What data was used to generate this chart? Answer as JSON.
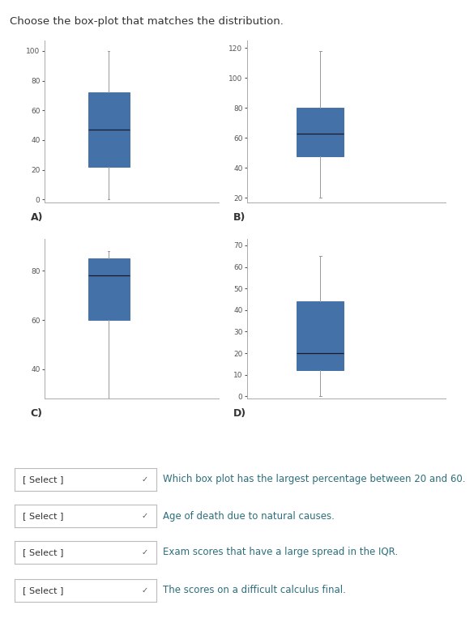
{
  "title": "Choose the box-plot that matches the distribution.",
  "box_color": "#4472a8",
  "box_edge_color": "#4472a8",
  "median_color": "#1a1a2e",
  "whisker_color": "#999999",
  "cap_color": "#999999",
  "text_color": "#2c6e7a",
  "plots": [
    {
      "label": "A)",
      "whislo": 0,
      "q1": 22,
      "med": 47,
      "q3": 72,
      "whishi": 100,
      "ylim": [
        -2,
        107
      ],
      "yticks": [
        0,
        20,
        40,
        60,
        80,
        100
      ]
    },
    {
      "label": "B)",
      "whislo": 20,
      "q1": 48,
      "med": 63,
      "q3": 80,
      "whishi": 118,
      "ylim": [
        17,
        125
      ],
      "yticks": [
        20,
        40,
        60,
        80,
        100,
        120
      ]
    },
    {
      "label": "C)",
      "whislo": 20,
      "q1": 60,
      "med": 78,
      "q3": 85,
      "whishi": 88,
      "ylim": [
        28,
        93
      ],
      "yticks": [
        40,
        60,
        80
      ]
    },
    {
      "label": "D)",
      "whislo": 0,
      "q1": 12,
      "med": 20,
      "q3": 44,
      "whishi": 65,
      "ylim": [
        -1,
        73
      ],
      "yticks": [
        0,
        10,
        20,
        30,
        40,
        50,
        60,
        70
      ]
    }
  ],
  "questions": [
    "Which box plot has the largest percentage between 20 and 60.",
    "Age of death due to natural causes.",
    "Exam scores that have a large spread in the IQR.",
    "The scores on a difficult calculus final."
  ],
  "select_label": "[ Select ]"
}
